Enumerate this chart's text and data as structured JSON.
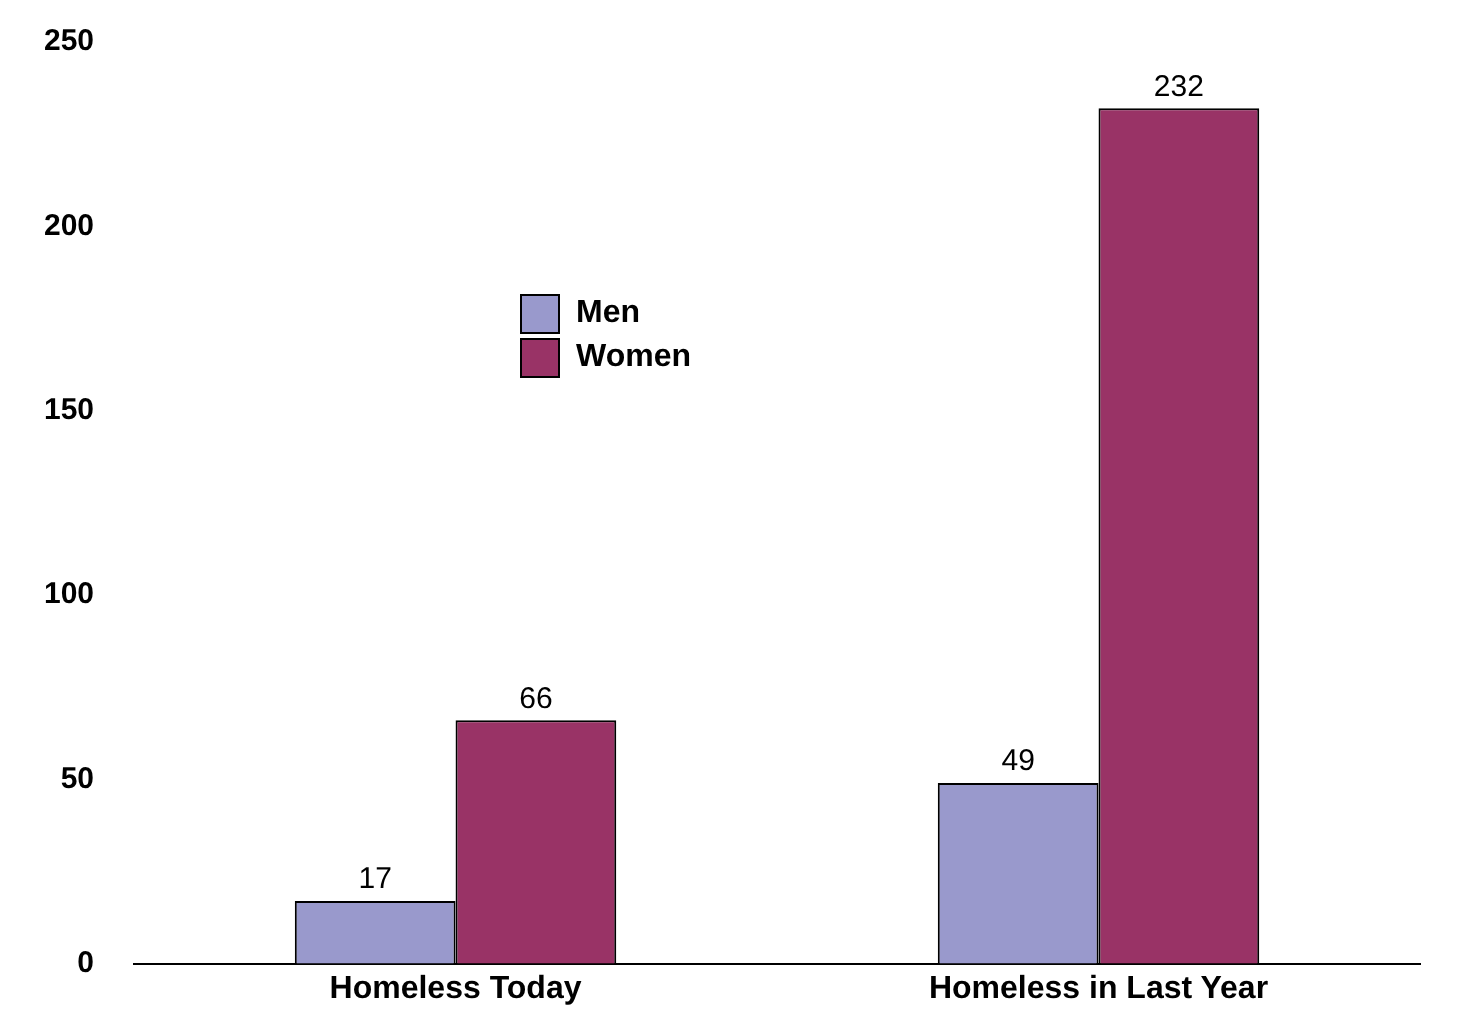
{
  "chart_data": {
    "type": "bar",
    "categories": [
      "Homeless Today",
      "Homeless in Last Year"
    ],
    "series": [
      {
        "name": "Men",
        "color": "#9999cc",
        "values": [
          17,
          49
        ]
      },
      {
        "name": "Women",
        "color": "#993366",
        "values": [
          66,
          232
        ]
      }
    ],
    "ylim": [
      0,
      250
    ],
    "yticks": [
      0,
      50,
      100,
      150,
      200,
      250
    ],
    "grid": false,
    "legend": "top left",
    "data_labels": true
  }
}
